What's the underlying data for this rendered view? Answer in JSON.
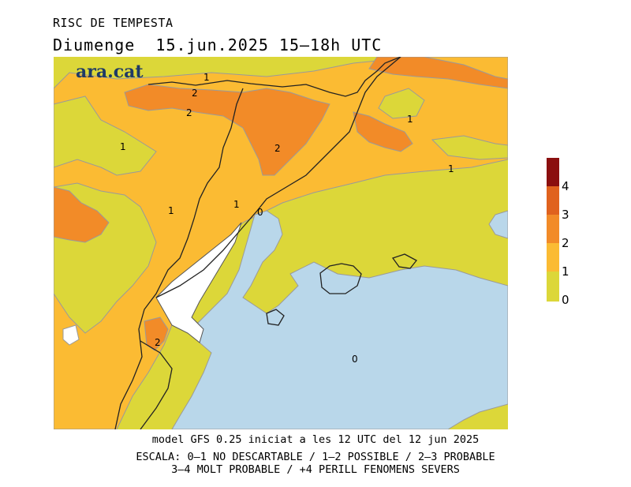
{
  "header": {
    "title": "RISC DE TEMPESTA",
    "subtitle": "Diumenge  15.jun.2025 15–18h UTC"
  },
  "logo": "ara.cat",
  "map": {
    "contour_labels": [
      "1",
      "2",
      "2",
      "1",
      "2",
      "1",
      "1",
      "1",
      "1",
      "0",
      "2",
      "0"
    ]
  },
  "legend": {
    "labels": [
      "4",
      "3",
      "2",
      "1",
      "0"
    ],
    "colors": [
      "#8b0f0f",
      "#e0621e",
      "#f28b28",
      "#fbbb33",
      "#dcd739"
    ]
  },
  "footer": {
    "line1": "model GFS 0.25 iniciat a les 12 UTC del 12 jun 2025",
    "line2": "ESCALA: 0–1 NO DESCARTABLE / 1–2 POSSIBLE / 2–3 PROBABLE",
    "line3": "3–4 MOLT PROBABLE / +4 PERILL FENOMENS SEVERS"
  },
  "colors": {
    "level0": "#dcd739",
    "level1": "#fbbb33",
    "level2": "#f28b28",
    "level3": "#e0621e",
    "level4": "#8b0f0f",
    "sea": "#b9d7ea",
    "no_data": "#ffffff"
  }
}
